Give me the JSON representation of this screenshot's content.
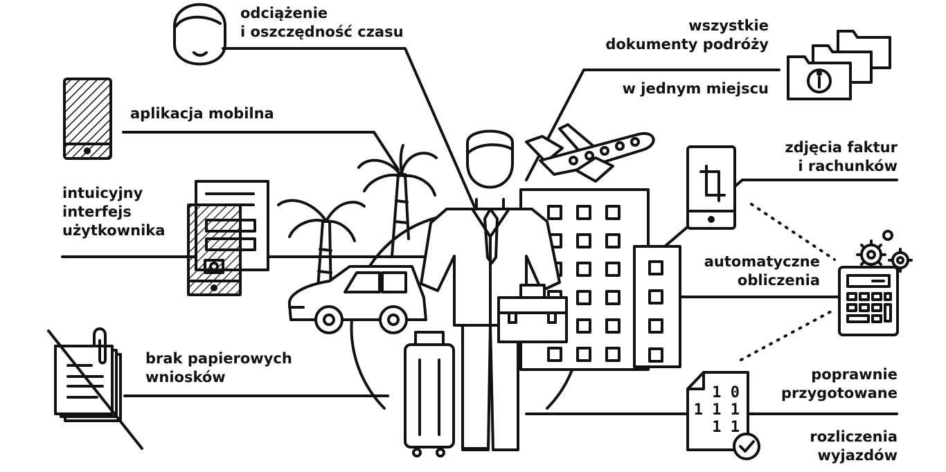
{
  "labels": {
    "time_savings": [
      "odciążenie",
      "i oszczędność czasu"
    ],
    "documents": [
      "wszystkie",
      "dokumenty podróży",
      "w jednym miejscu"
    ],
    "mobile_app": [
      "aplikacja mobilna"
    ],
    "invoice_photos": [
      "zdjęcia faktur",
      "i rachunków"
    ],
    "interface": [
      "intuicyjny",
      "interfejs",
      "użytkownika"
    ],
    "auto_calc": [
      "automatyczne",
      "obliczenia"
    ],
    "no_paper": [
      "brak papierowych",
      "wniosków"
    ],
    "settlements": [
      "poprawnie",
      "przygotowane",
      "rozliczenia",
      "wyjazdów"
    ]
  },
  "binary_doc": [
    "1 0",
    "1 1 1",
    "1 1"
  ],
  "colors": {
    "ink": "#111111",
    "background": "#ffffff"
  },
  "icons": [
    "face-icon",
    "phone-hatched-icon",
    "form-document-icon",
    "folders-info-icon",
    "airplane-icon",
    "palm-trees-icon",
    "car-icon",
    "businessman-icon",
    "briefcase-icon",
    "suitcase-icon",
    "hotel-building-icon",
    "phone-crop-icon",
    "gears-icon",
    "calculator-icon",
    "paper-stack-crossed-icon",
    "binary-document-check-icon"
  ]
}
